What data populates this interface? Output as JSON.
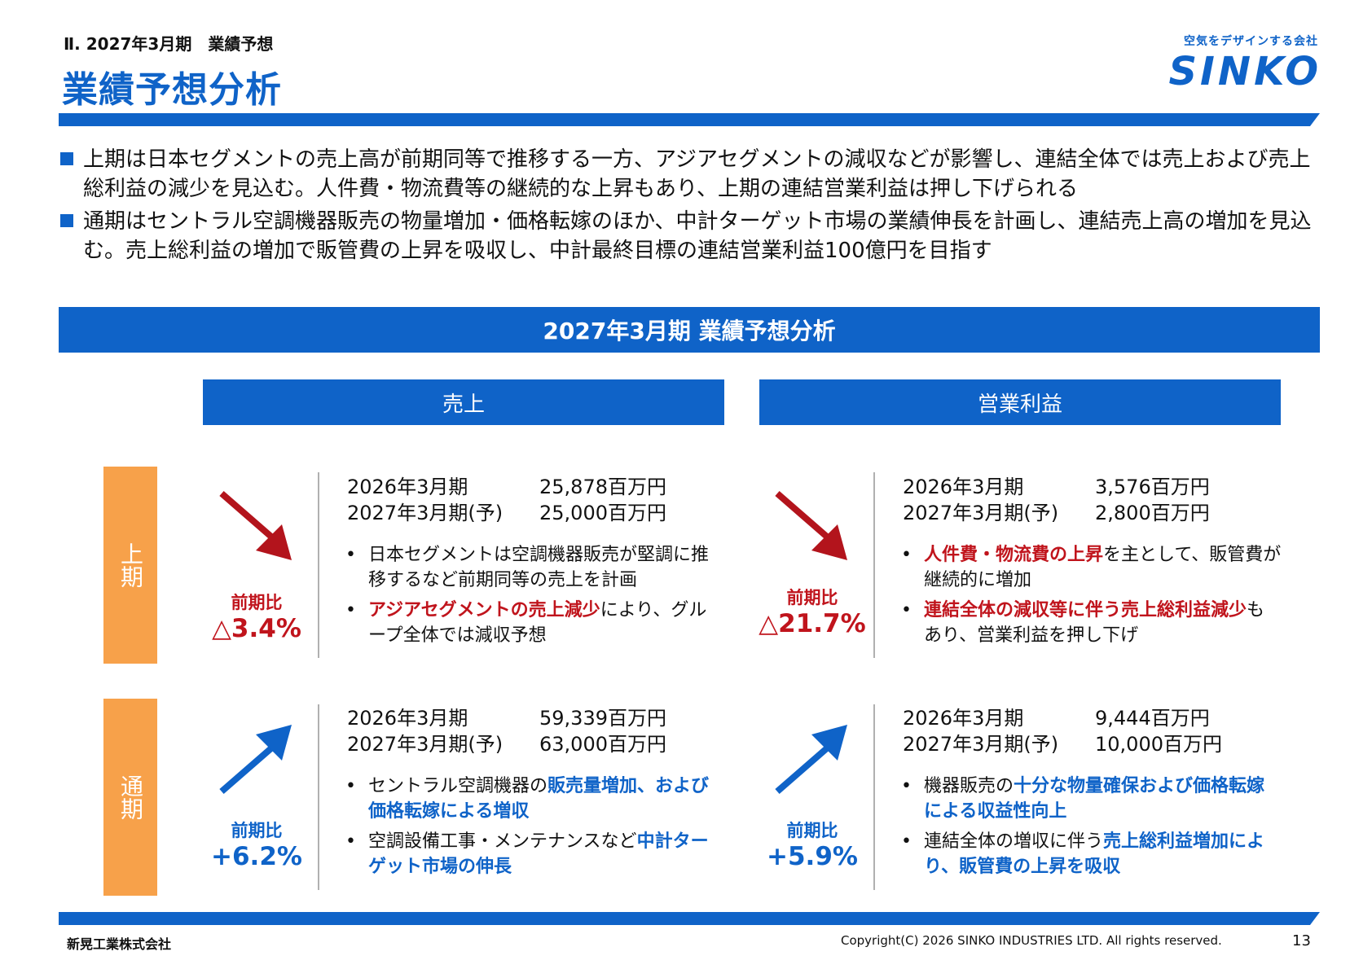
{
  "header": {
    "section_label": "Ⅱ. 2027年3月期　業績予想",
    "title": "業績予想分析",
    "tagline": "空気をデザインする会社",
    "logo_text": "SINKO",
    "accent_color": "#0f63c8"
  },
  "bullets": [
    "上期は日本セグメントの売上高が前期同等で推移する一方、アジアセグメントの減収などが影響し、連結全体では売上および売上総利益の減少を見込む。人件費・物流費等の継続的な上昇もあり、上期の連結営業利益は押し下げられる",
    "通期はセントラル空調機器販売の物量増加・価格転嫁のほか、中計ターゲット市場の業績伸長を計画し、連結売上高の増加を見込む。売上総利益の増加で販管費の上昇を吸収し、中計最終目標の連結営業利益100億円を目指す"
  ],
  "banner": "2027年3月期 業績予想分析",
  "columns": {
    "sales": "売上",
    "op_profit": "営業利益"
  },
  "rows": {
    "h1": "上期",
    "full": "通期"
  },
  "cells": {
    "h1_sales": {
      "direction": "down",
      "ratio_label": "前期比",
      "ratio_value": "△3.4%",
      "prev_label": "2026年3月期",
      "prev_value": "25,878百万円",
      "fcst_label": "2027年3月期(予)",
      "fcst_value": "25,000百万円",
      "notes": [
        [
          {
            "t": "日本セグメントは空調機器販売が堅調に推移するなど前期同等の売上を計画",
            "h": ""
          }
        ],
        [
          {
            "t": "アジアセグメントの売上減少",
            "h": "red"
          },
          {
            "t": "により、グループ全体では減収予想",
            "h": ""
          }
        ]
      ]
    },
    "h1_op": {
      "direction": "down",
      "ratio_label": "前期比",
      "ratio_value": "△21.7%",
      "prev_label": "2026年3月期",
      "prev_value": "3,576百万円",
      "fcst_label": "2027年3月期(予)",
      "fcst_value": "2,800百万円",
      "notes": [
        [
          {
            "t": "人件費・物流費の上昇",
            "h": "red"
          },
          {
            "t": "を主として、販管費が継続的に増加",
            "h": ""
          }
        ],
        [
          {
            "t": "連結全体の減収等に伴う売上総利益減少",
            "h": "red"
          },
          {
            "t": "もあり、営業利益を押し下げ",
            "h": ""
          }
        ]
      ]
    },
    "full_sales": {
      "direction": "up",
      "ratio_label": "前期比",
      "ratio_value": "+6.2%",
      "prev_label": "2026年3月期",
      "prev_value": "59,339百万円",
      "fcst_label": "2027年3月期(予)",
      "fcst_value": "63,000百万円",
      "notes": [
        [
          {
            "t": "セントラル空調機器の",
            "h": ""
          },
          {
            "t": "販売量増加、および価格転嫁による増収",
            "h": "blue"
          }
        ],
        [
          {
            "t": "空調設備工事・メンテナンスなど",
            "h": ""
          },
          {
            "t": "中計ターゲット市場の伸長",
            "h": "blue"
          }
        ]
      ]
    },
    "full_op": {
      "direction": "up",
      "ratio_label": "前期比",
      "ratio_value": "+5.9%",
      "prev_label": "2026年3月期",
      "prev_value": "9,444百万円",
      "fcst_label": "2027年3月期(予)",
      "fcst_value": "10,000百万円",
      "notes": [
        [
          {
            "t": "機器販売の",
            "h": ""
          },
          {
            "t": "十分な物量確保および価格転嫁による収益性向上",
            "h": "blue"
          }
        ],
        [
          {
            "t": "連結全体の増収に伴う",
            "h": ""
          },
          {
            "t": "売上総利益増加により、販管費の上昇を吸収",
            "h": "blue"
          }
        ]
      ]
    }
  },
  "footer": {
    "company": "新晃工業株式会社",
    "copyright": "Copyright(C) 2026 SINKO INDUSTRIES LTD. All rights reserved.",
    "page": "13"
  }
}
